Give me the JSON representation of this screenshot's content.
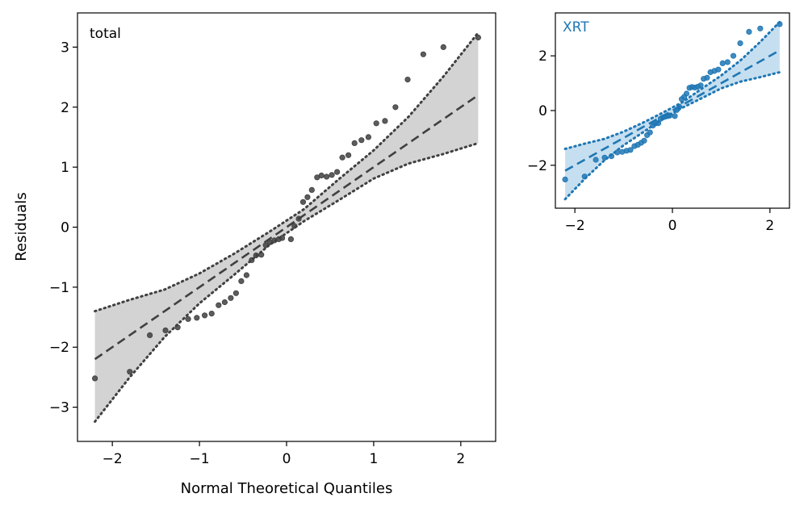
{
  "chart_data": [
    {
      "type": "scatter",
      "panel_label": "total",
      "xlabel": "Normal Theoretical Quantiles",
      "ylabel": "Residuals",
      "xlim": [
        -2.4,
        2.4
      ],
      "ylim": [
        -3.57,
        3.57
      ],
      "xticks": [
        -2,
        -1,
        0,
        1,
        2
      ],
      "xtick_labels": [
        "−2",
        "−1",
        "0",
        "1",
        "2"
      ],
      "yticks": [
        -3,
        -2,
        -1,
        0,
        1,
        2,
        3
      ],
      "ytick_labels": [
        "−3",
        "−2",
        "−1",
        "0",
        "1",
        "2",
        "3"
      ],
      "color": "#404040",
      "fill_color": "#d3d3d3",
      "label_color": "#000000",
      "reference_line": {
        "slope": 1.0,
        "intercept": 0.0,
        "x_range": [
          -2.2,
          2.2
        ]
      },
      "confidence_band": {
        "x": [
          -2.2,
          -1.8,
          -1.4,
          -1.0,
          -0.6,
          -0.2,
          0.2,
          0.6,
          1.0,
          1.4,
          1.8,
          2.2
        ],
        "lower": [
          -3.24,
          -2.5,
          -1.83,
          -1.27,
          -0.79,
          -0.3,
          0.1,
          0.45,
          0.81,
          1.06,
          1.22,
          1.4
        ],
        "upper": [
          -1.4,
          -1.21,
          -1.04,
          -0.77,
          -0.44,
          -0.08,
          0.3,
          0.8,
          1.28,
          1.84,
          2.51,
          3.24
        ]
      },
      "points": {
        "x": [
          -2.2,
          -1.8,
          -1.57,
          -1.39,
          -1.25,
          -1.13,
          -1.03,
          -0.94,
          -0.86,
          -0.78,
          -0.71,
          -0.64,
          -0.58,
          -0.52,
          -0.46,
          -0.4,
          -0.35,
          -0.29,
          -0.24,
          -0.19,
          -0.14,
          -0.09,
          -0.05,
          0.05,
          0.09,
          0.14,
          0.19,
          0.24,
          0.29,
          0.35,
          0.4,
          0.46,
          0.52,
          0.58,
          0.64,
          0.71,
          0.78,
          0.86,
          0.94,
          1.03,
          1.13,
          1.25,
          1.39,
          1.57,
          1.8,
          2.2
        ],
        "y": [
          -2.52,
          -2.41,
          -1.8,
          -1.72,
          -1.67,
          -1.53,
          -1.51,
          -1.47,
          -1.44,
          -1.3,
          -1.25,
          -1.18,
          -1.1,
          -0.9,
          -0.8,
          -0.55,
          -0.47,
          -0.46,
          -0.3,
          -0.25,
          -0.22,
          -0.2,
          -0.18,
          -0.2,
          0.02,
          0.14,
          0.42,
          0.5,
          0.62,
          0.83,
          0.86,
          0.84,
          0.87,
          0.92,
          1.16,
          1.2,
          1.4,
          1.45,
          1.5,
          1.73,
          1.77,
          2.0,
          2.46,
          2.88,
          3.0,
          3.16
        ]
      }
    },
    {
      "type": "scatter",
      "panel_label": "XRT",
      "xlabel": "",
      "ylabel": "",
      "xlim": [
        -2.4,
        2.4
      ],
      "ylim": [
        -3.57,
        3.57
      ],
      "xticks": [
        -2,
        0,
        2
      ],
      "xtick_labels": [
        "−2",
        "0",
        "2"
      ],
      "yticks": [
        -2,
        0,
        2
      ],
      "ytick_labels": [
        "−2",
        "0",
        "2"
      ],
      "color": "#1f77b4",
      "fill_color": "#c6dff0",
      "label_color": "#1f77b4",
      "reference_line": {
        "slope": 1.0,
        "intercept": 0.0,
        "x_range": [
          -2.2,
          2.2
        ]
      },
      "confidence_band": {
        "x": [
          -2.2,
          -1.8,
          -1.4,
          -1.0,
          -0.6,
          -0.2,
          0.2,
          0.6,
          1.0,
          1.4,
          1.8,
          2.2
        ],
        "lower": [
          -3.24,
          -2.5,
          -1.83,
          -1.27,
          -0.79,
          -0.3,
          0.1,
          0.45,
          0.81,
          1.06,
          1.22,
          1.4
        ],
        "upper": [
          -1.4,
          -1.21,
          -1.04,
          -0.77,
          -0.44,
          -0.08,
          0.3,
          0.8,
          1.28,
          1.84,
          2.51,
          3.24
        ]
      },
      "points": {
        "x": [
          -2.2,
          -1.8,
          -1.57,
          -1.39,
          -1.25,
          -1.13,
          -1.03,
          -0.94,
          -0.86,
          -0.78,
          -0.71,
          -0.64,
          -0.58,
          -0.52,
          -0.46,
          -0.4,
          -0.35,
          -0.29,
          -0.24,
          -0.19,
          -0.14,
          -0.09,
          -0.05,
          0.05,
          0.09,
          0.14,
          0.19,
          0.24,
          0.29,
          0.35,
          0.4,
          0.46,
          0.52,
          0.58,
          0.64,
          0.71,
          0.78,
          0.86,
          0.94,
          1.03,
          1.13,
          1.25,
          1.39,
          1.57,
          1.8,
          2.2
        ],
        "y": [
          -2.52,
          -2.41,
          -1.8,
          -1.72,
          -1.67,
          -1.53,
          -1.51,
          -1.47,
          -1.44,
          -1.3,
          -1.25,
          -1.18,
          -1.1,
          -0.9,
          -0.8,
          -0.55,
          -0.47,
          -0.46,
          -0.3,
          -0.25,
          -0.22,
          -0.2,
          -0.18,
          -0.2,
          0.02,
          0.14,
          0.42,
          0.5,
          0.62,
          0.83,
          0.86,
          0.84,
          0.87,
          0.92,
          1.16,
          1.2,
          1.4,
          1.45,
          1.5,
          1.73,
          1.77,
          2.0,
          2.46,
          2.88,
          3.0,
          3.16
        ]
      }
    }
  ]
}
